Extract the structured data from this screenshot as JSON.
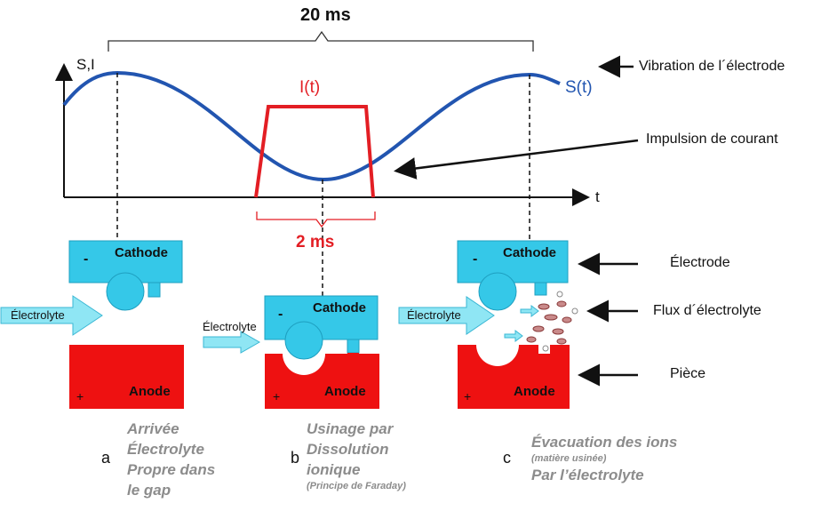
{
  "period_label": "20 ms",
  "pulse_width_label": "2 ms",
  "axes": {
    "y_label": "S,I",
    "x_label": "t"
  },
  "signals": {
    "vibration_label": "S(t)",
    "current_label": "I(t)",
    "vibration_color": "#2255b0",
    "current_color": "#e31e24"
  },
  "annotations": {
    "vibration": "Vibration de l´électrode",
    "current_pulse": "Impulsion de courant",
    "electrode": "Électrode",
    "electrolyte_flow": "Flux d´électrolyte",
    "workpiece": "Pièce"
  },
  "blocks": {
    "cathode": "Cathode",
    "anode": "Anode",
    "minus": "-",
    "plus": "+",
    "electrolyte_a": "Électrolyte",
    "electrolyte_b": "Électrolyte",
    "electrolyte_c": "Électrolyte",
    "cathode_color": "#35c8e8",
    "anode_color": "#ee1111"
  },
  "stages": [
    {
      "letter": "a",
      "lines": [
        "Arrivée",
        "Électrolyte",
        "Propre dans",
        "le gap"
      ]
    },
    {
      "letter": "b",
      "lines": [
        "Usinage par",
        "Dissolution",
        "ionique"
      ],
      "note": "(Principe  de Faraday)"
    },
    {
      "letter": "c",
      "lines": [
        "Évacuation des ions"
      ],
      "note": "(matière usinée)",
      "lines_after": [
        "Par l’électrolyte"
      ]
    }
  ]
}
